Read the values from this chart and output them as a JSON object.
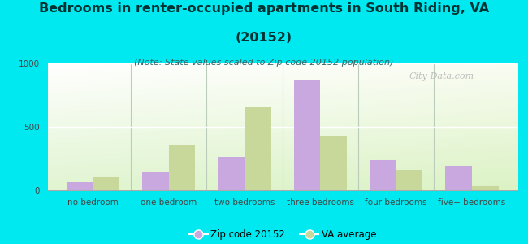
{
  "title_line1": "Bedrooms in renter-occupied apartments in South Riding, VA",
  "title_line2": "(20152)",
  "subtitle": "(Note: State values scaled to Zip code 20152 population)",
  "categories": [
    "no bedroom",
    "one bedroom",
    "two bedrooms",
    "three bedrooms",
    "four bedrooms",
    "five+ bedrooms"
  ],
  "zip_values": [
    65,
    150,
    265,
    870,
    240,
    195
  ],
  "va_values": [
    105,
    360,
    660,
    430,
    160,
    30
  ],
  "zip_color": "#c9a8e0",
  "va_color": "#c8d89a",
  "background_color": "#00e8f0",
  "ylim": [
    0,
    1000
  ],
  "yticks": [
    0,
    500,
    1000
  ],
  "zip_label": "Zip code 20152",
  "va_label": "VA average",
  "watermark": "City-Data.com",
  "title_fontsize": 11.5,
  "subtitle_fontsize": 8,
  "axis_fontsize": 7.5,
  "legend_fontsize": 8.5,
  "bar_width": 0.35,
  "title_color": "#003333",
  "subtitle_color": "#336666",
  "tick_color": "#444444",
  "divider_color": "#bbccbb",
  "watermark_color": "#aaaaaa"
}
